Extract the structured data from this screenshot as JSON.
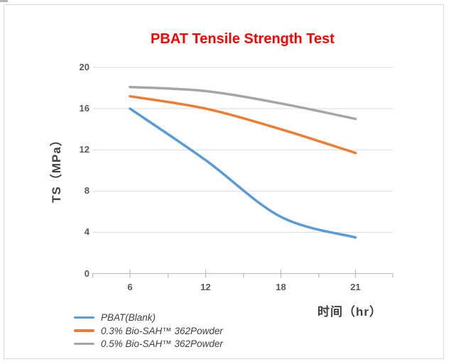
{
  "chart_data": {
    "type": "line",
    "title": "PBAT Tensile Strength Test",
    "title_color": "#FF0000",
    "xlabel": "时间（hr）",
    "ylabel": "TS（MPa）",
    "categories": [
      "6",
      "12",
      "18",
      "21"
    ],
    "yticks": [
      0,
      4,
      8,
      12,
      16,
      20
    ],
    "ylim": [
      0,
      20
    ],
    "grid": "horizontal-only",
    "smoothed_lines": true,
    "legend_position": "bottom-left",
    "series": [
      {
        "name": "PBAT(Blank)",
        "color": "#5B9BD5",
        "values": [
          16.0,
          11.0,
          5.5,
          3.5
        ]
      },
      {
        "name": "0.3% Bio-SAH™ 362Powder",
        "color": "#ED7D31",
        "values": [
          17.2,
          16.0,
          14.0,
          11.7
        ]
      },
      {
        "name": "0.5% Bio-SAH™ 362Powder",
        "color": "#A5A5A5",
        "values": [
          18.1,
          17.7,
          16.5,
          15.0
        ]
      }
    ],
    "colors": {
      "gridline": "#D9D9D9",
      "axis_line": "#BFBFBF",
      "tick_label": "#595959",
      "axis_title": "#404040",
      "frame_border": "#D9D9D9"
    }
  }
}
